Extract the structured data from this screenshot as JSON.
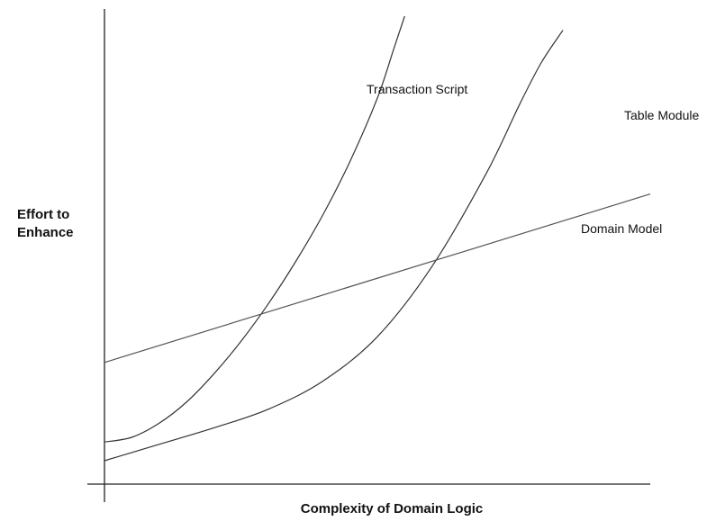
{
  "chart_data": {
    "type": "line",
    "title": "",
    "xlabel": "Complexity of Domain Logic",
    "ylabel_lines": [
      "Effort to",
      "Enhance"
    ],
    "xlim": [
      0,
      10
    ],
    "ylim": [
      0,
      10
    ],
    "grid": false,
    "legend": "none",
    "series": [
      {
        "name": "Transaction Script",
        "color": "#333333",
        "points": [
          [
            0,
            0.9
          ],
          [
            0.5,
            1.0
          ],
          [
            1.0,
            1.3
          ],
          [
            1.5,
            1.75
          ],
          [
            2.0,
            2.35
          ],
          [
            2.5,
            3.05
          ],
          [
            3.0,
            3.85
          ],
          [
            3.5,
            4.75
          ],
          [
            4.0,
            5.75
          ],
          [
            4.5,
            6.9
          ],
          [
            5.0,
            8.25
          ],
          [
            5.3,
            9.3
          ],
          [
            5.5,
            10.0
          ]
        ]
      },
      {
        "name": "Table Module",
        "color": "#333333",
        "points": [
          [
            0,
            0.5
          ],
          [
            1.0,
            0.85
          ],
          [
            2.0,
            1.2
          ],
          [
            3.0,
            1.6
          ],
          [
            4.0,
            2.2
          ],
          [
            5.0,
            3.15
          ],
          [
            6.0,
            4.65
          ],
          [
            7.0,
            6.65
          ],
          [
            7.6,
            8.1
          ],
          [
            8.0,
            9.0
          ],
          [
            8.4,
            9.7
          ]
        ]
      },
      {
        "name": "Domain Model",
        "color": "#555555",
        "points": [
          [
            0,
            2.6
          ],
          [
            10,
            6.2
          ]
        ]
      }
    ]
  }
}
